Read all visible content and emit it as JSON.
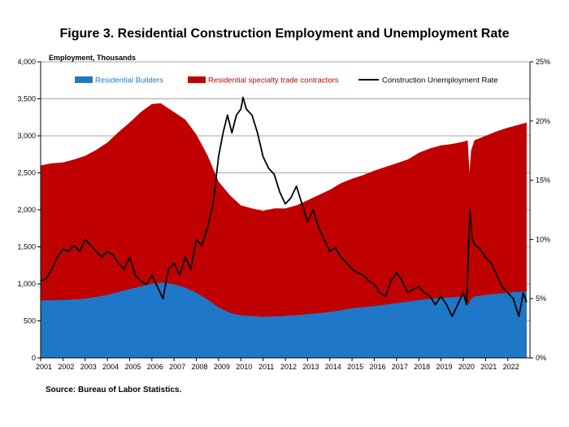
{
  "chart_data": {
    "type": "area",
    "title": "Figure 3. Residential Construction Employment and Unemployment Rate",
    "ylabel_left": "Employment, Thousands",
    "source": "Source: Bureau of Labor Statistics.",
    "ylim_left": [
      0,
      4000
    ],
    "ylim_right": [
      0,
      25
    ],
    "x_range": [
      2001,
      2023
    ],
    "left_ticks": [
      "0",
      "500",
      "1,000",
      "1,500",
      "2,000",
      "2,500",
      "3,000",
      "3,500",
      "4,000"
    ],
    "right_ticks": [
      "0%",
      "5%",
      "10%",
      "15%",
      "20%",
      "25%"
    ],
    "x_ticks": [
      "2001",
      "2002",
      "2003",
      "2004",
      "2005",
      "2006",
      "2007",
      "2008",
      "2009",
      "2010",
      "2011",
      "2012",
      "2013",
      "2014",
      "2015",
      "2016",
      "2017",
      "2018",
      "2019",
      "2020",
      "2021",
      "2022"
    ],
    "colors": {
      "builders": "#1f77c8",
      "specialty": "#c00000",
      "unemployment": "#000000",
      "grid": "#a6a6a6"
    },
    "series": [
      {
        "name": "Residential Builders",
        "kind": "area",
        "axis": "left",
        "x": [
          2001,
          2002,
          2003,
          2004,
          2005,
          2006,
          2006.4,
          2007,
          2007.5,
          2008,
          2008.5,
          2009,
          2009.5,
          2010,
          2011,
          2012,
          2013,
          2014,
          2015,
          2016,
          2017,
          2018,
          2019,
          2020,
          2020.25,
          2020.3,
          2020.5,
          2021,
          2022,
          2022.85
        ],
        "values": [
          775,
          780,
          800,
          850,
          930,
          1000,
          1020,
          995,
          950,
          880,
          790,
          680,
          610,
          575,
          555,
          565,
          590,
          620,
          670,
          700,
          740,
          780,
          810,
          830,
          720,
          780,
          830,
          850,
          880,
          900
        ]
      },
      {
        "name": "Residential specialty trade contractors",
        "kind": "area",
        "axis": "left",
        "stacked_total": true,
        "x": [
          2001,
          2001.5,
          2002,
          2002.5,
          2003,
          2003.5,
          2004,
          2004.5,
          2005,
          2005.5,
          2006,
          2006.4,
          2006.8,
          2007,
          2007.5,
          2008,
          2008.5,
          2009,
          2009.5,
          2010,
          2010.5,
          2011,
          2011.5,
          2012,
          2012.5,
          2013,
          2013.5,
          2014,
          2014.5,
          2015,
          2015.5,
          2016,
          2016.5,
          2017,
          2017.5,
          2018,
          2018.5,
          2019,
          2019.5,
          2020,
          2020.2,
          2020.28,
          2020.35,
          2020.5,
          2021,
          2021.5,
          2022,
          2022.5,
          2022.85
        ],
        "values": [
          2600,
          2630,
          2640,
          2680,
          2730,
          2810,
          2910,
          3050,
          3180,
          3320,
          3430,
          3440,
          3360,
          3320,
          3220,
          3020,
          2740,
          2380,
          2200,
          2060,
          2020,
          1985,
          2020,
          2020,
          2060,
          2130,
          2200,
          2270,
          2360,
          2420,
          2470,
          2530,
          2580,
          2630,
          2680,
          2770,
          2830,
          2870,
          2890,
          2920,
          2940,
          2500,
          2800,
          2940,
          3000,
          3060,
          3110,
          3150,
          3180
        ]
      },
      {
        "name": "Construction Unemployment Rate",
        "kind": "line",
        "axis": "right",
        "x": [
          2001,
          2001.25,
          2001.5,
          2001.75,
          2002,
          2002.25,
          2002.5,
          2002.75,
          2003,
          2003.25,
          2003.5,
          2003.75,
          2004,
          2004.25,
          2004.5,
          2004.75,
          2005,
          2005.25,
          2005.5,
          2005.75,
          2006,
          2006.25,
          2006.5,
          2006.75,
          2007,
          2007.25,
          2007.5,
          2007.75,
          2008,
          2008.25,
          2008.5,
          2008.75,
          2009,
          2009.2,
          2009.4,
          2009.6,
          2009.8,
          2010,
          2010.1,
          2010.25,
          2010.5,
          2010.75,
          2011,
          2011.25,
          2011.5,
          2011.75,
          2012,
          2012.25,
          2012.5,
          2012.75,
          2013,
          2013.25,
          2013.5,
          2013.75,
          2014,
          2014.25,
          2014.5,
          2014.75,
          2015,
          2015.25,
          2015.5,
          2015.75,
          2016,
          2016.25,
          2016.5,
          2016.75,
          2017,
          2017.25,
          2017.5,
          2017.75,
          2018,
          2018.25,
          2018.5,
          2018.75,
          2019,
          2019.25,
          2019.5,
          2019.75,
          2020,
          2020.15,
          2020.3,
          2020.4,
          2020.55,
          2020.75,
          2021,
          2021.25,
          2021.5,
          2021.75,
          2022,
          2022.25,
          2022.5,
          2022.7,
          2022.85
        ],
        "values": [
          6.5,
          6.7,
          7.5,
          8.5,
          9.2,
          9.0,
          9.5,
          9.0,
          10.0,
          9.5,
          9.0,
          8.5,
          9.0,
          8.7,
          8.0,
          7.5,
          8.5,
          7.0,
          6.5,
          6.2,
          7.0,
          6.0,
          5.0,
          7.5,
          8.0,
          7.0,
          8.5,
          7.5,
          10.0,
          9.5,
          11.0,
          13.0,
          17.0,
          19.0,
          20.5,
          19.0,
          20.5,
          21.0,
          22.0,
          21.0,
          20.5,
          19.0,
          17.0,
          16.0,
          15.5,
          14.0,
          13.0,
          13.5,
          14.5,
          13.0,
          11.5,
          12.5,
          11.0,
          10.0,
          9.0,
          9.3,
          8.5,
          8.0,
          7.5,
          7.2,
          7.0,
          6.5,
          6.2,
          5.5,
          5.2,
          6.5,
          7.2,
          6.5,
          5.5,
          5.8,
          6.0,
          5.5,
          5.2,
          4.5,
          5.2,
          4.5,
          3.5,
          4.5,
          5.5,
          4.5,
          12.5,
          10.0,
          9.5,
          9.2,
          8.5,
          8.0,
          7.0,
          6.0,
          5.5,
          5.0,
          3.5,
          5.5,
          4.7
        ]
      }
    ]
  }
}
